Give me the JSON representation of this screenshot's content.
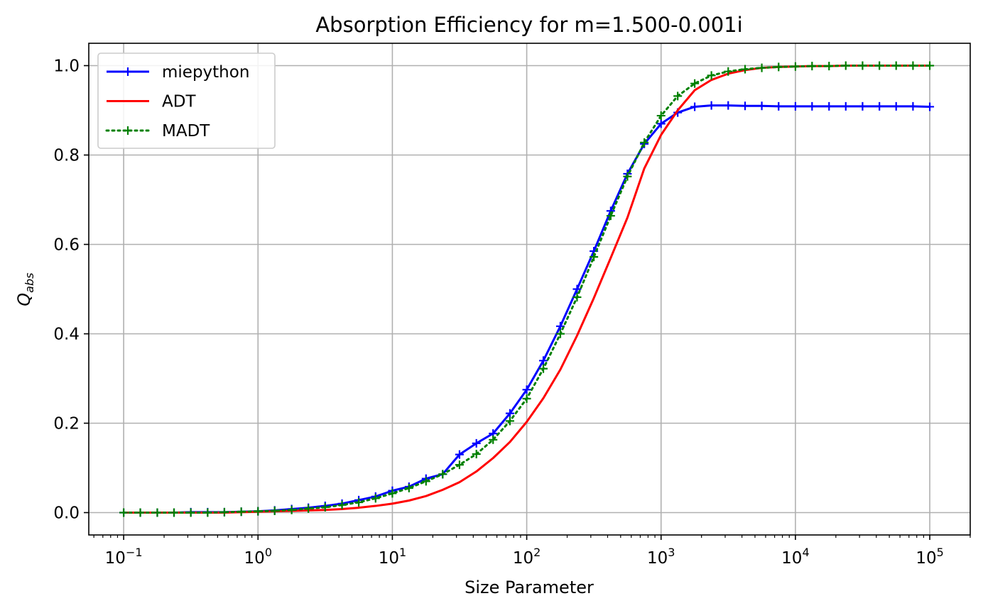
{
  "chart_data": {
    "type": "line",
    "title": "Absorption Efficiency for m=1.500-0.001i",
    "xlabel": "Size Parameter",
    "ylabel_base": "Q",
    "ylabel_sub": "abs",
    "xscale": "log",
    "xlim": [
      0.055,
      200000
    ],
    "ylim": [
      -0.05,
      1.05
    ],
    "grid": true,
    "legend_position": "top-left",
    "x_ticks": [
      {
        "base": "10",
        "exp": "−1",
        "value": 0.1
      },
      {
        "base": "10",
        "exp": "0",
        "value": 1
      },
      {
        "base": "10",
        "exp": "1",
        "value": 10
      },
      {
        "base": "10",
        "exp": "2",
        "value": 100
      },
      {
        "base": "10",
        "exp": "3",
        "value": 1000
      },
      {
        "base": "10",
        "exp": "4",
        "value": 10000
      },
      {
        "base": "10",
        "exp": "5",
        "value": 100000
      }
    ],
    "y_ticks": [
      {
        "label": "0.0",
        "value": 0.0
      },
      {
        "label": "0.2",
        "value": 0.2
      },
      {
        "label": "0.4",
        "value": 0.4
      },
      {
        "label": "0.6",
        "value": 0.6
      },
      {
        "label": "0.8",
        "value": 0.8
      },
      {
        "label": "1.0",
        "value": 1.0
      }
    ],
    "x": [
      0.1,
      0.133,
      0.178,
      0.237,
      0.316,
      0.422,
      0.562,
      0.75,
      1.0,
      1.33,
      1.78,
      2.37,
      3.16,
      4.22,
      5.62,
      7.5,
      10,
      13.3,
      17.8,
      23.7,
      31.6,
      42.2,
      56.2,
      75,
      100,
      133,
      178,
      237,
      316,
      422,
      562,
      750,
      1000,
      1330,
      1780,
      2370,
      3160,
      4220,
      5620,
      7500,
      10000,
      13300,
      17800,
      23700,
      31600,
      42200,
      56200,
      75000,
      100000
    ],
    "series": [
      {
        "name": "miepython",
        "color": "#0000ff",
        "line_style": "solid",
        "marker": "+",
        "values": [
          0.0,
          0.0,
          0.0,
          0.0,
          0.001,
          0.001,
          0.001,
          0.002,
          0.003,
          0.005,
          0.008,
          0.011,
          0.015,
          0.02,
          0.028,
          0.036,
          0.049,
          0.058,
          0.076,
          0.086,
          0.13,
          0.155,
          0.177,
          0.222,
          0.275,
          0.34,
          0.417,
          0.5,
          0.585,
          0.675,
          0.758,
          0.825,
          0.87,
          0.895,
          0.908,
          0.911,
          0.911,
          0.91,
          0.91,
          0.909,
          0.909,
          0.909,
          0.909,
          0.909,
          0.909,
          0.909,
          0.909,
          0.909,
          0.908
        ]
      },
      {
        "name": "ADT",
        "color": "#ff0000",
        "line_style": "solid",
        "marker": "none",
        "values": [
          0.0,
          0.0,
          0.0,
          0.0,
          0.0,
          0.0,
          0.0,
          0.001,
          0.002,
          0.003,
          0.004,
          0.005,
          0.006,
          0.008,
          0.011,
          0.015,
          0.02,
          0.027,
          0.037,
          0.051,
          0.068,
          0.092,
          0.122,
          0.158,
          0.203,
          0.256,
          0.32,
          0.396,
          0.48,
          0.57,
          0.66,
          0.77,
          0.845,
          0.9,
          0.945,
          0.968,
          0.982,
          0.99,
          0.995,
          0.997,
          0.998,
          0.999,
          0.999,
          1.0,
          1.0,
          1.0,
          1.0,
          1.0,
          1.0
        ]
      },
      {
        "name": "MADT",
        "color": "#008000",
        "line_style": "dotted",
        "marker": "+",
        "values": [
          0.0,
          0.0,
          0.0,
          0.0,
          0.0,
          0.0,
          0.001,
          0.002,
          0.003,
          0.004,
          0.006,
          0.009,
          0.012,
          0.017,
          0.023,
          0.032,
          0.043,
          0.055,
          0.07,
          0.086,
          0.107,
          0.131,
          0.163,
          0.205,
          0.255,
          0.322,
          0.4,
          0.482,
          0.572,
          0.664,
          0.752,
          0.828,
          0.888,
          0.932,
          0.96,
          0.978,
          0.987,
          0.992,
          0.995,
          0.997,
          0.998,
          0.999,
          0.999,
          1.0,
          1.0,
          1.0,
          1.0,
          1.0,
          1.0
        ]
      }
    ]
  }
}
